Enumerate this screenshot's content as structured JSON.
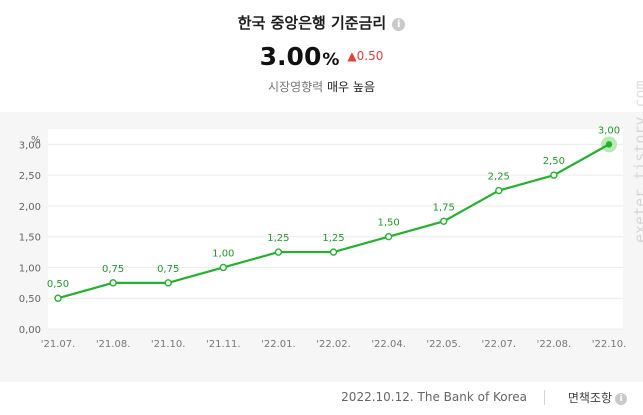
{
  "header": {
    "title": "한국 중앙은행 기준금리",
    "value": "3.00",
    "unit": "%",
    "change": "▲0.50",
    "impact_label": "시장영향력",
    "impact_value": "매우 높음"
  },
  "chart_data": {
    "type": "line",
    "ylabel": "%",
    "categories": [
      "'21.07.",
      "'21.08.",
      "'21.10.",
      "'21.11.",
      "'22.01.",
      "'22.02.",
      "'22.04.",
      "'22.05.",
      "'22.07.",
      "'22.08.",
      "'22.10."
    ],
    "values": [
      0.5,
      0.75,
      0.75,
      1.0,
      1.25,
      1.25,
      1.5,
      1.75,
      2.25,
      2.5,
      3.0
    ],
    "point_labels": [
      "0,50",
      "0,75",
      "0,75",
      "1,00",
      "1,25",
      "1,25",
      "1,50",
      "1,75",
      "2,25",
      "2,50",
      "3,00"
    ],
    "yticks": [
      0,
      0.5,
      1.0,
      1.5,
      2.0,
      2.5,
      3.0
    ],
    "ytick_labels": [
      "0,00",
      "0,50",
      "1,00",
      "1,50",
      "2,00",
      "2,50",
      "3,00"
    ],
    "ylim": [
      0,
      3.25
    ],
    "grid": true,
    "line_color": "#22b22b",
    "highlight_color": "#b8eab5"
  },
  "footer": {
    "source": "2022.10.12. The Bank of Korea",
    "disclaimer": "면책조항"
  },
  "watermark": "exeter.tistory.com",
  "colors": {
    "change": "#e0413a",
    "plot_bg": "#ffffff",
    "outer_bg": "#f6f6f6"
  }
}
